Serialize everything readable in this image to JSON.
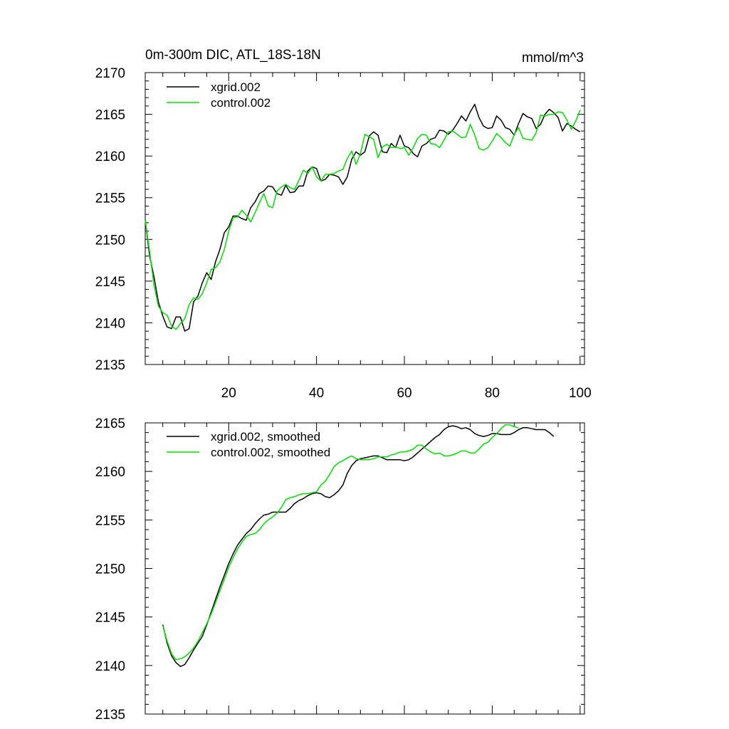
{
  "chart_data": [
    {
      "type": "line",
      "title_left": "0m-300m DIC, ATL_18S-18N",
      "title_right": "mmol/m^3",
      "xlabel": "",
      "ylabel": "",
      "xlim": [
        1,
        101
      ],
      "ylim": [
        2135,
        2170
      ],
      "x_major_ticks": [
        20,
        40,
        60,
        80,
        100
      ],
      "x_tick_labels": [
        "20",
        "40",
        "60",
        "80",
        "100"
      ],
      "y_major_ticks": [
        2135,
        2140,
        2145,
        2150,
        2155,
        2160,
        2165,
        2170
      ],
      "y_tick_labels": [
        "2135",
        "2140",
        "2145",
        "2150",
        "2155",
        "2160",
        "2165",
        "2170"
      ],
      "legend_position": "top-left",
      "series": [
        {
          "name": "xgrid.002",
          "color": "#000000",
          "x_start": 1,
          "values": [
            2152.3,
            2148.0,
            2145.5,
            2142.5,
            2140.8,
            2139.5,
            2139.3,
            2140.7,
            2140.7,
            2139.0,
            2139.3,
            2142.5,
            2143.2,
            2144.8,
            2146.0,
            2145.2,
            2147.3,
            2148.8,
            2150.8,
            2151.5,
            2152.8,
            2152.8,
            2152.5,
            2152.3,
            2153.8,
            2154.5,
            2155.5,
            2155.8,
            2156.4,
            2156.3,
            2155.5,
            2155.3,
            2156.5,
            2155.6,
            2155.7,
            2156.4,
            2156.4,
            2158.2,
            2158.7,
            2158.5,
            2157.0,
            2157.2,
            2157.8,
            2157.7,
            2157.5,
            2156.6,
            2157.5,
            2159.6,
            2160.5,
            2160.1,
            2160.5,
            2162.4,
            2162.9,
            2162.5,
            2160.5,
            2160.4,
            2161.5,
            2161.0,
            2162.5,
            2161.2,
            2161.0,
            2160.3,
            2159.9,
            2161.2,
            2161.5,
            2162.0,
            2162.2,
            2163.1,
            2163.0,
            2162.6,
            2163.1,
            2163.9,
            2164.8,
            2164.2,
            2165.3,
            2166.2,
            2164.6,
            2163.6,
            2163.3,
            2163.4,
            2164.8,
            2164.3,
            2163.4,
            2163.2,
            2162.5,
            2163.9,
            2165.1,
            2164.7,
            2164.5,
            2163.3,
            2163.8,
            2165.0,
            2165.6,
            2165.2,
            2164.6,
            2163.0,
            2163.9,
            2163.6,
            2163.2,
            2162.9
          ]
        },
        {
          "name": "control.002",
          "color": "#00e000",
          "x_start": 1,
          "values": [
            2152.3,
            2148.5,
            2144.5,
            2142.0,
            2141.2,
            2140.9,
            2139.6,
            2139.2,
            2139.9,
            2140.5,
            2142.2,
            2143.0,
            2142.8,
            2143.5,
            2144.8,
            2146.4,
            2146.6,
            2147.3,
            2148.8,
            2151.0,
            2152.6,
            2152.7,
            2153.5,
            2152.9,
            2152.1,
            2153.2,
            2154.4,
            2155.5,
            2154.0,
            2153.8,
            2155.8,
            2156.3,
            2156.6,
            2156.2,
            2156.0,
            2157.1,
            2158.3,
            2157.9,
            2158.7,
            2157.5,
            2157.0,
            2157.8,
            2157.8,
            2157.9,
            2158.2,
            2158.4,
            2159.7,
            2160.6,
            2159.0,
            2160.3,
            2162.6,
            2162.3,
            2162.0,
            2159.8,
            2161.1,
            2161.4,
            2161.0,
            2161.1,
            2160.9,
            2161.0,
            2160.1,
            2161.0,
            2162.1,
            2162.6,
            2162.5,
            2161.5,
            2161.4,
            2161.0,
            2161.9,
            2162.9,
            2163.0,
            2162.6,
            2162.2,
            2162.3,
            2163.8,
            2162.5,
            2160.9,
            2160.7,
            2161.0,
            2161.8,
            2162.7,
            2162.2,
            2161.6,
            2161.2,
            2162.6,
            2163.4,
            2162.1,
            2162.0,
            2161.9,
            2162.8,
            2164.9,
            2164.8,
            2165.0,
            2165.0,
            2165.3,
            2165.2,
            2164.3,
            2163.2,
            2164.2,
            2165.5
          ]
        }
      ]
    },
    {
      "type": "line",
      "xlabel": "",
      "ylabel": "",
      "xlim": [
        1,
        101
      ],
      "ylim": [
        2135,
        2165
      ],
      "x_major_ticks": [
        20,
        40,
        60,
        80,
        100
      ],
      "x_tick_labels": [],
      "y_major_ticks": [
        2135,
        2140,
        2145,
        2150,
        2155,
        2160,
        2165
      ],
      "y_tick_labels": [
        "2135",
        "2140",
        "2145",
        "2150",
        "2155",
        "2160",
        "2165"
      ],
      "legend_position": "top-left",
      "series": [
        {
          "name": "xgrid.002, smoothed",
          "color": "#000000",
          "x_start": 5,
          "values": [
            2144.2,
            2142.3,
            2141.0,
            2140.3,
            2139.9,
            2140.1,
            2140.8,
            2141.6,
            2142.3,
            2143.0,
            2144.2,
            2145.5,
            2146.8,
            2148.1,
            2149.3,
            2150.5,
            2151.5,
            2152.4,
            2153.0,
            2153.6,
            2154.0,
            2154.6,
            2155.1,
            2155.5,
            2155.6,
            2155.8,
            2155.8,
            2155.8,
            2155.8,
            2156.2,
            2156.7,
            2157.0,
            2157.2,
            2157.5,
            2157.7,
            2157.8,
            2157.7,
            2157.4,
            2157.3,
            2157.6,
            2158.0,
            2158.6,
            2159.8,
            2160.6,
            2161.1,
            2161.3,
            2161.4,
            2161.5,
            2161.6,
            2161.6,
            2161.4,
            2161.2,
            2161.2,
            2161.2,
            2161.2,
            2161.1,
            2161.2,
            2161.5,
            2161.9,
            2162.3,
            2162.7,
            2163.1,
            2163.5,
            2163.8,
            2164.3,
            2164.6,
            2164.7,
            2164.6,
            2164.4,
            2164.5,
            2164.3,
            2163.9,
            2163.7,
            2163.6,
            2163.7,
            2163.9,
            2163.9,
            2163.8,
            2163.8,
            2163.8,
            2164.0,
            2164.3,
            2164.5,
            2164.5,
            2164.4,
            2164.3,
            2164.3,
            2164.3,
            2164.0,
            2163.6
          ]
        },
        {
          "name": "control.002, smoothed",
          "color": "#00e000",
          "x_start": 5,
          "values": [
            2144.1,
            2142.5,
            2141.2,
            2140.6,
            2140.7,
            2140.9,
            2141.3,
            2141.8,
            2142.5,
            2143.4,
            2144.3,
            2145.3,
            2146.5,
            2147.7,
            2148.9,
            2150.1,
            2151.1,
            2152.0,
            2152.7,
            2153.3,
            2153.5,
            2153.6,
            2154.0,
            2154.6,
            2155.0,
            2155.3,
            2155.7,
            2156.3,
            2157.1,
            2157.3,
            2157.4,
            2157.6,
            2157.7,
            2157.7,
            2157.8,
            2157.9,
            2158.6,
            2159.0,
            2159.7,
            2160.5,
            2160.9,
            2161.1,
            2161.4,
            2161.6,
            2161.3,
            2161.2,
            2161.2,
            2161.2,
            2161.3,
            2161.5,
            2161.5,
            2161.5,
            2161.7,
            2161.8,
            2162.0,
            2162.0,
            2162.1,
            2162.3,
            2162.7,
            2162.7,
            2162.3,
            2162.0,
            2161.8,
            2161.9,
            2161.6,
            2161.6,
            2161.7,
            2161.9,
            2162.1,
            2162.1,
            2161.9,
            2161.9,
            2162.3,
            2162.8,
            2163.0,
            2163.5,
            2163.9,
            2164.4,
            2164.8,
            2164.8,
            2164.6,
            2164.5
          ]
        }
      ]
    }
  ]
}
